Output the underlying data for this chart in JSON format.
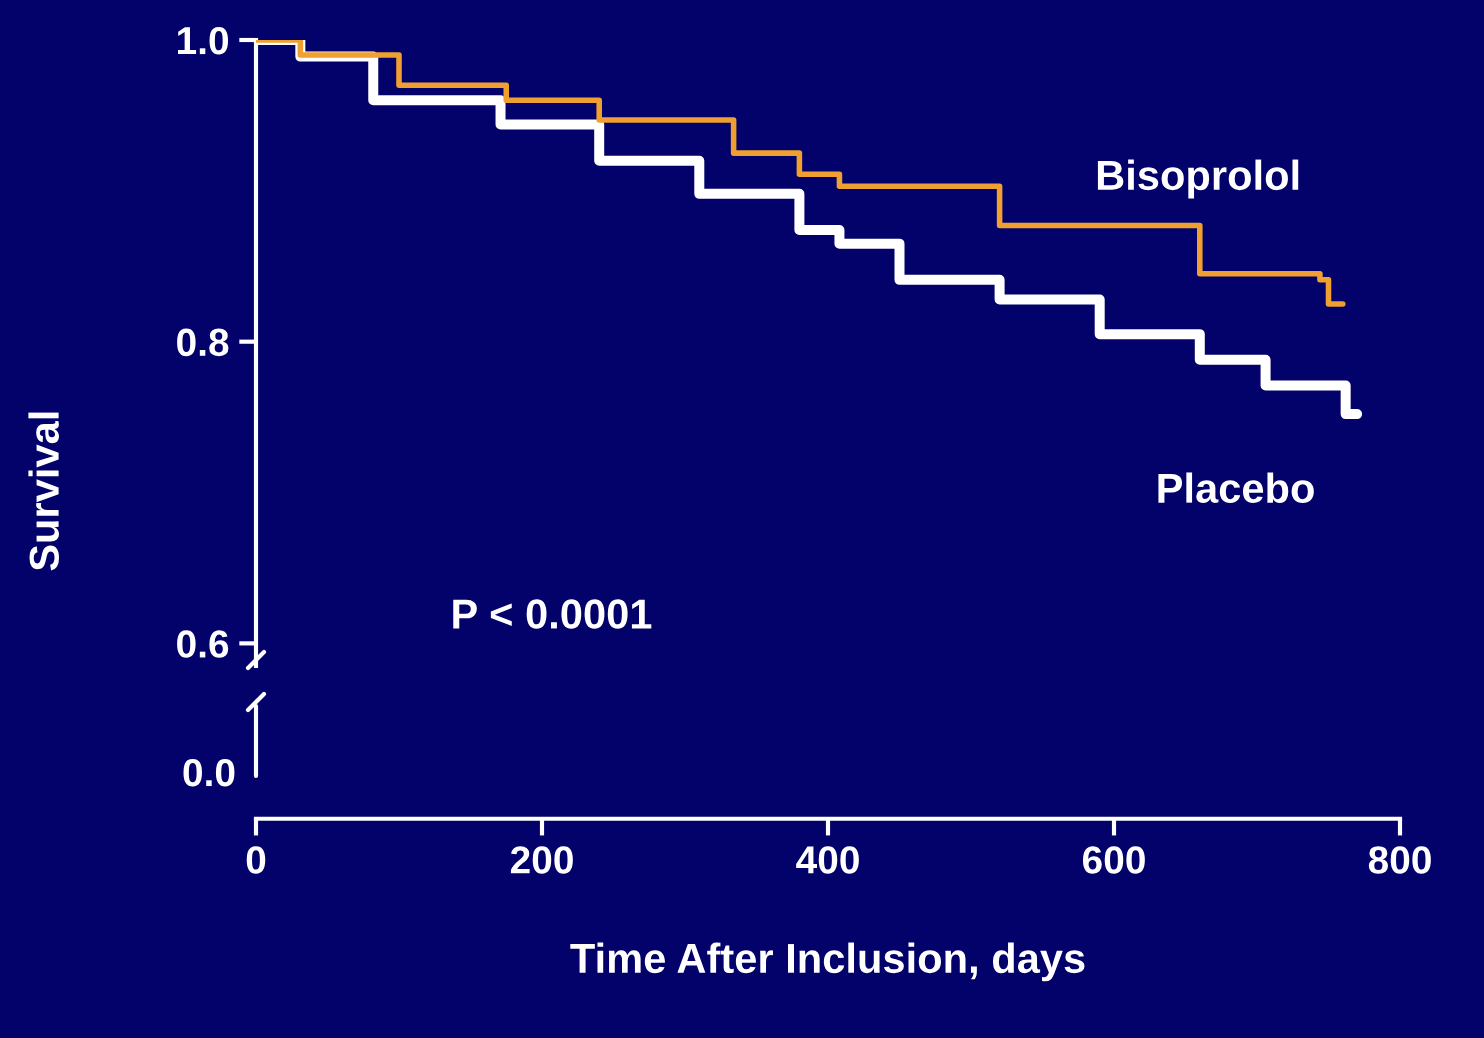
{
  "chart_data": {
    "type": "step",
    "xlabel": "Time After Inclusion, days",
    "ylabel": "Survival",
    "xlim": [
      0,
      800
    ],
    "xticks": [
      0,
      200,
      400,
      600,
      800
    ],
    "ylim": [
      0.585,
      1.0
    ],
    "yticks": [
      {
        "value": 0.6,
        "label": "0.6"
      },
      {
        "value": 0.8,
        "label": "0.8"
      },
      {
        "value": 1.0,
        "label": "1.0"
      }
    ],
    "grid": false,
    "legend": false,
    "series": [
      {
        "name": "Bisoprolol",
        "color": "#f0a030",
        "x": [
          0,
          31,
          100,
          175,
          240,
          334,
          380,
          408,
          520,
          660,
          744,
          750,
          760
        ],
        "values": [
          1.0,
          0.99,
          0.97,
          0.96,
          0.947,
          0.925,
          0.911,
          0.903,
          0.877,
          0.845,
          0.841,
          0.825,
          0.825
        ]
      },
      {
        "name": "Placebo",
        "color": "#ffffff",
        "x": [
          0,
          31,
          82,
          171,
          240,
          310,
          380,
          408,
          450,
          520,
          590,
          660,
          706,
          762,
          770
        ],
        "values": [
          1.0,
          0.989,
          0.96,
          0.944,
          0.92,
          0.898,
          0.874,
          0.865,
          0.841,
          0.828,
          0.805,
          0.788,
          0.771,
          0.752,
          0.752
        ]
      }
    ],
    "annotations": [
      "P < 0.0001",
      "0.0"
    ]
  }
}
